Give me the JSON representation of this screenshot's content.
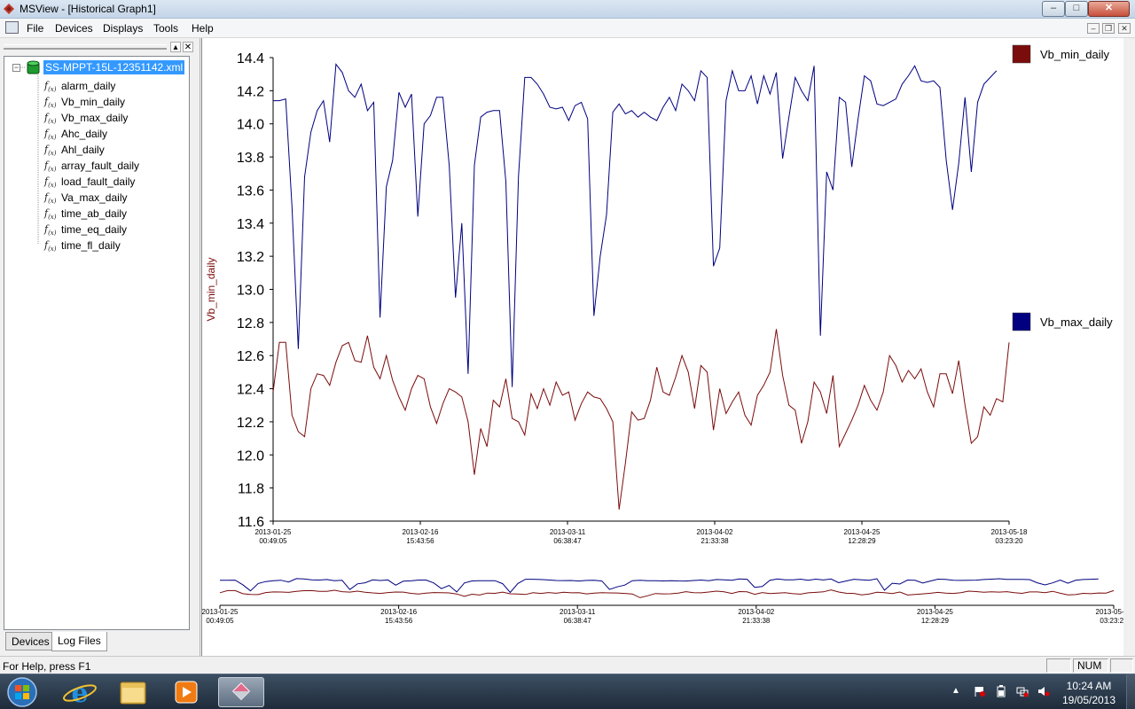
{
  "window": {
    "title": "MSView - [Historical Graph1]"
  },
  "menu": [
    "File",
    "Devices",
    "Displays",
    "Tools",
    "Help"
  ],
  "tree": {
    "root": "SS-MPPT-15L-12351142.xml",
    "items": [
      "alarm_daily",
      "Vb_min_daily",
      "Vb_max_daily",
      "Ahc_daily",
      "Ahl_daily",
      "array_fault_daily",
      "load_fault_daily",
      "Va_max_daily",
      "time_ab_daily",
      "time_eq_daily",
      "time_fl_daily"
    ],
    "fx_symbol": "f",
    "fx_sub": "(x)"
  },
  "tabs": [
    "Devices",
    "Log Files"
  ],
  "status": {
    "help": "For Help, press F1",
    "num": "NUM"
  },
  "clock": {
    "time": "10:24 AM",
    "date": "19/05/2013"
  },
  "colors": {
    "vb_min": "#7b0c0c",
    "vb_max": "#000080"
  },
  "chart_data": {
    "type": "line",
    "ylabel": "Vb_min_daily",
    "ylim": [
      11.6,
      14.4
    ],
    "yticks": [
      "14.4",
      "14.2",
      "14.0",
      "13.8",
      "13.6",
      "13.4",
      "13.2",
      "13.0",
      "12.8",
      "12.6",
      "12.4",
      "12.2",
      "12.0",
      "11.8",
      "11.6"
    ],
    "xticks": [
      [
        "2013-01-25",
        "00:49:05"
      ],
      [
        "2013-02-16",
        "15:43:56"
      ],
      [
        "2013-03-11",
        "06:38:47"
      ],
      [
        "2013-04-02",
        "21:33:38"
      ],
      [
        "2013-04-25",
        "12:28:29"
      ],
      [
        "2013-05-18",
        "03:23:20"
      ]
    ],
    "legend": [
      "Vb_min_daily",
      "Vb_max_daily"
    ],
    "series": [
      {
        "name": "Vb_min_daily",
        "values": [
          12.38,
          12.68,
          12.68,
          12.24,
          12.14,
          12.11,
          12.4,
          12.49,
          12.48,
          12.42,
          12.56,
          12.66,
          12.68,
          12.57,
          12.56,
          12.72,
          12.53,
          12.46,
          12.6,
          12.45,
          12.35,
          12.27,
          12.4,
          12.48,
          12.46,
          12.29,
          12.19,
          12.31,
          12.4,
          12.38,
          12.35,
          12.2,
          11.88,
          12.16,
          12.05,
          12.33,
          12.29,
          12.46,
          12.22,
          12.2,
          12.12,
          12.37,
          12.28,
          12.4,
          12.3,
          12.44,
          12.36,
          12.38,
          12.21,
          12.31,
          12.38,
          12.35,
          12.34,
          12.28,
          12.2,
          11.67,
          11.95,
          12.26,
          12.21,
          12.22,
          12.33,
          12.53,
          12.38,
          12.36,
          12.47,
          12.6,
          12.5,
          12.28,
          12.54,
          12.5,
          12.15,
          12.4,
          12.25,
          12.32,
          12.38,
          12.24,
          12.18,
          12.36,
          12.42,
          12.5,
          12.76,
          12.48,
          12.3,
          12.27,
          12.07,
          12.2,
          12.44,
          12.38,
          12.25,
          12.48,
          12.05,
          12.13,
          12.21,
          12.3,
          12.42,
          12.33,
          12.27,
          12.38,
          12.6,
          12.54,
          12.44,
          12.51,
          12.46,
          12.52,
          12.38,
          12.29,
          12.49,
          12.49,
          12.37,
          12.57,
          12.3,
          12.07,
          12.11,
          12.29,
          12.24,
          12.34,
          12.32,
          12.68
        ]
      },
      {
        "name": "Vb_max_daily",
        "values": [
          14.14,
          14.14,
          14.15,
          13.5,
          12.64,
          13.68,
          13.95,
          14.08,
          14.14,
          13.89,
          14.36,
          14.31,
          14.2,
          14.16,
          14.24,
          14.08,
          14.13,
          12.83,
          13.62,
          13.78,
          14.19,
          14.1,
          14.18,
          13.44,
          14.0,
          14.05,
          14.16,
          14.16,
          13.75,
          12.95,
          13.4,
          12.49,
          13.75,
          14.04,
          14.07,
          14.08,
          14.08,
          13.65,
          12.41,
          13.68,
          14.28,
          14.28,
          14.24,
          14.18,
          14.1,
          14.09,
          14.1,
          14.02,
          14.11,
          14.13,
          14.03,
          12.84,
          13.2,
          13.45,
          14.07,
          14.12,
          14.06,
          14.08,
          14.04,
          14.07,
          14.04,
          14.02,
          14.1,
          14.16,
          14.08,
          14.24,
          14.2,
          14.14,
          14.32,
          14.28,
          13.14,
          13.25,
          14.14,
          14.32,
          14.2,
          14.2,
          14.29,
          14.12,
          14.29,
          14.18,
          14.31,
          13.79,
          14.04,
          14.28,
          14.2,
          14.14,
          14.35,
          12.72,
          13.71,
          13.6,
          14.16,
          14.13,
          13.74,
          14.03,
          14.29,
          14.26,
          14.12,
          14.11,
          14.13,
          14.15,
          14.24,
          14.29,
          14.35,
          14.26,
          14.25,
          14.26,
          14.22,
          13.78,
          13.48,
          13.76,
          14.16,
          13.71,
          14.13,
          14.24,
          14.28,
          14.32
        ]
      }
    ]
  }
}
